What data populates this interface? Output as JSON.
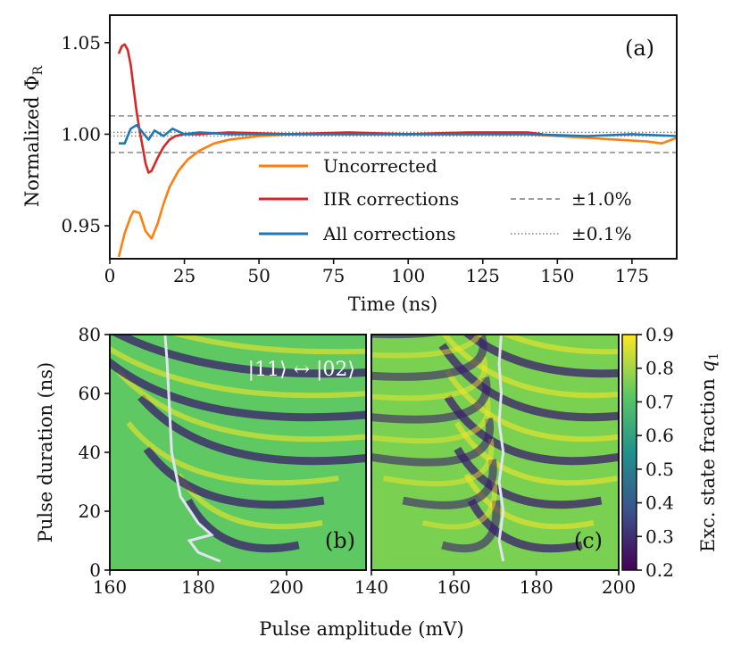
{
  "chart_data": [
    {
      "type": "line",
      "panel_label": "(a)",
      "xlabel": "Time (ns)",
      "ylabel_main": "Normalized Φ",
      "ylabel_sub": "R",
      "xlim": [
        0,
        190
      ],
      "ylim": [
        0.932,
        1.065
      ],
      "x_ticks": [
        "0",
        "25",
        "50",
        "75",
        "100",
        "125",
        "150",
        "175"
      ],
      "y_ticks": [
        "0.95",
        "1.00",
        "1.05"
      ],
      "reference_lines": [
        {
          "label": "±1.0%",
          "style": "dashed",
          "values": [
            0.99,
            1.01
          ]
        },
        {
          "label": "±0.1%",
          "style": "dotted",
          "values": [
            0.999,
            1.001
          ]
        }
      ],
      "series": [
        {
          "name": "Uncorrected",
          "color": "#ff7f0e",
          "x": [
            3,
            5,
            7,
            8,
            10,
            12,
            14,
            16,
            18,
            20,
            23,
            26,
            30,
            35,
            40,
            50,
            60,
            80,
            100,
            120,
            140,
            160,
            170,
            180,
            185,
            190
          ],
          "y": [
            0.933,
            0.946,
            0.955,
            0.958,
            0.957,
            0.947,
            0.943,
            0.951,
            0.962,
            0.971,
            0.98,
            0.986,
            0.991,
            0.995,
            0.997,
            0.999,
            1.0,
            1.0,
            1.0,
            1.0,
            1.0,
            0.998,
            0.997,
            0.996,
            0.995,
            0.998
          ]
        },
        {
          "name": "IIR corrections",
          "color": "#d62728",
          "x": [
            3,
            4,
            5,
            6,
            7,
            8,
            9,
            10,
            11,
            12,
            13,
            14,
            16,
            18,
            20,
            22,
            25,
            30,
            40,
            60,
            80,
            100,
            120,
            140,
            145
          ],
          "y": [
            1.044,
            1.048,
            1.049,
            1.046,
            1.038,
            1.025,
            1.012,
            1.002,
            0.993,
            0.984,
            0.979,
            0.98,
            0.987,
            0.993,
            0.997,
            0.999,
            1.0,
            1.0,
            1.001,
            1.0,
            1.001,
            1.0,
            1.001,
            1.001,
            1.0
          ]
        },
        {
          "name": "All corrections",
          "color": "#1f77b4",
          "x": [
            3,
            5,
            7,
            9,
            11,
            13,
            15,
            18,
            21,
            25,
            30,
            40,
            60,
            80,
            100,
            120,
            140,
            160,
            175,
            190
          ],
          "y": [
            0.995,
            0.995,
            1.003,
            1.005,
            1.001,
            0.997,
            1.002,
            0.999,
            1.003,
            1.0,
            1.001,
            1.0,
            1.0,
            1.0,
            1.0,
            1.0,
            1.0,
            0.999,
            1.0,
            0.999
          ]
        }
      ]
    },
    {
      "type": "heatmap",
      "panel_label": "(b)",
      "annotation": "|11⟩ ↔ |02⟩",
      "xlabel": "Pulse amplitude (mV)",
      "ylabel": "Pulse duration (ns)",
      "xlim": [
        160,
        218
      ],
      "ylim": [
        0,
        80
      ],
      "x_ticks": [
        "160",
        "180",
        "200"
      ],
      "y_ticks": [
        "0",
        "20",
        "40",
        "60",
        "80"
      ],
      "ridge_curve": {
        "x": [
          185,
          180,
          178,
          183,
          180,
          176,
          174,
          173.5,
          173,
          172.5
        ],
        "y": [
          3,
          6,
          10,
          12,
          16,
          25,
          40,
          55,
          70,
          80
        ]
      }
    },
    {
      "type": "heatmap",
      "panel_label": "(c)",
      "xlabel": "Pulse amplitude (mV)",
      "xlim": [
        140,
        200
      ],
      "ylim": [
        0,
        80
      ],
      "x_ticks": [
        "140",
        "160",
        "180",
        "200"
      ],
      "ridge_curve": {
        "x": [
          172,
          171,
          172,
          171,
          172,
          171,
          171.5,
          171,
          171.5
        ],
        "y": [
          3,
          10,
          20,
          30,
          40,
          50,
          60,
          70,
          80
        ]
      }
    },
    {
      "type": "colorbar",
      "label_main": "Exc. state fraction ",
      "label_var": "q",
      "label_sub": "1",
      "range": [
        0.2,
        0.9
      ],
      "ticks": [
        "0.2",
        "0.3",
        "0.4",
        "0.5",
        "0.6",
        "0.7",
        "0.8",
        "0.9"
      ],
      "colormap": [
        "#440154",
        "#3b528b",
        "#21918c",
        "#5ec962",
        "#fde725"
      ]
    }
  ]
}
